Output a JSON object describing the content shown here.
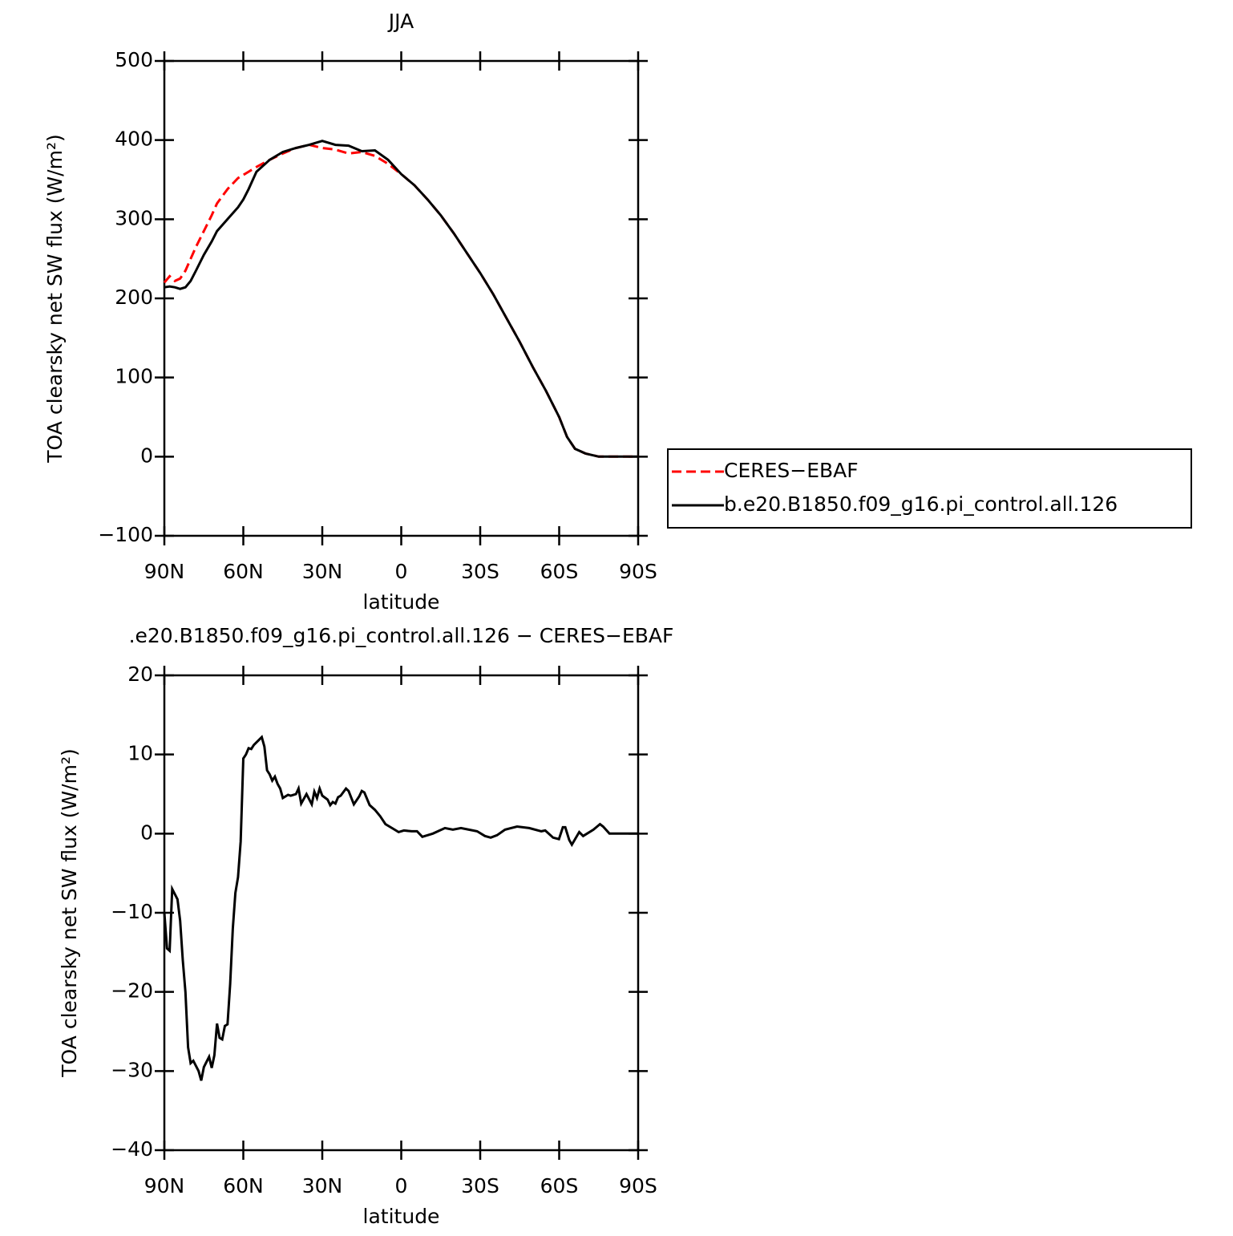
{
  "chart_data": [
    {
      "type": "line",
      "title": "JJA",
      "xlabel": "latitude",
      "ylabel": "TOA clearsky net SW flux (W/m²)",
      "x": [
        90,
        88,
        86,
        84,
        82,
        80,
        78,
        75,
        72,
        70,
        66,
        62,
        60,
        58,
        55,
        50,
        45,
        40,
        35,
        30,
        25,
        20,
        15,
        10,
        5,
        0,
        -5,
        -10,
        -15,
        -20,
        -25,
        -30,
        -35,
        -40,
        -45,
        -50,
        -55,
        -60,
        -63,
        -66,
        -70,
        -75,
        -80,
        -85,
        -90
      ],
      "series": [
        {
          "name": "CERES−EBAF",
          "color": "#ff0000",
          "dashed": true,
          "values": [
            220,
            228,
            222,
            225,
            235,
            250,
            265,
            285,
            305,
            320,
            338,
            352,
            356,
            360,
            366,
            375,
            383,
            390,
            394,
            390,
            388,
            383,
            385,
            380,
            370,
            357,
            343,
            325,
            305,
            282,
            257,
            232,
            205,
            175,
            145,
            113,
            83,
            50,
            25,
            10,
            4,
            0,
            0,
            0,
            0
          ]
        },
        {
          "name": "b.e20.B1850.f09_g16.pi_control.all.126",
          "color": "#000000",
          "dashed": false,
          "values": [
            214,
            215,
            214,
            212,
            214,
            222,
            235,
            255,
            272,
            285,
            300,
            315,
            325,
            338,
            360,
            375,
            385,
            390,
            394,
            399,
            394,
            393,
            386,
            387,
            375,
            357,
            343,
            325,
            305,
            282,
            257,
            232,
            205,
            175,
            145,
            113,
            83,
            50,
            25,
            10,
            4,
            0,
            0,
            0,
            0
          ]
        }
      ],
      "xlim": [
        90,
        -90
      ],
      "xticks": [
        {
          "value": 90,
          "label": "90N"
        },
        {
          "value": 60,
          "label": "60N"
        },
        {
          "value": 30,
          "label": "30N"
        },
        0,
        {
          "value": -30,
          "label": "30S"
        },
        {
          "value": -60,
          "label": "60S"
        },
        {
          "value": -90,
          "label": "90S"
        }
      ],
      "ylim": [
        -100,
        500
      ],
      "yticks": [
        {
          "value": -100,
          "label": "−100"
        },
        0,
        100,
        200,
        300,
        400,
        500
      ],
      "legend": "right"
    },
    {
      "type": "line",
      "title": ".e20.B1850.f09_g16.pi_control.all.126 − CERES−EBAF",
      "xlabel": "latitude",
      "ylabel": "TOA clearsky net SW flux (W/m²)",
      "x": [
        90,
        89,
        88,
        87,
        85,
        84,
        83,
        82,
        81,
        80,
        79,
        77,
        76,
        75,
        73,
        72,
        71,
        70,
        69,
        68,
        67,
        66,
        65,
        64,
        63,
        62,
        61,
        60,
        59,
        58,
        57,
        56,
        53,
        52,
        51,
        50,
        49,
        48,
        47,
        46,
        45,
        43,
        42,
        40,
        39,
        38,
        36,
        34,
        33,
        32,
        31,
        30,
        28,
        27,
        26,
        25,
        24,
        23,
        21,
        20,
        18,
        16,
        15,
        14,
        12,
        10,
        8,
        6,
        3,
        1,
        -1,
        -4,
        -6,
        -8,
        -12,
        -16.6,
        -19.6,
        -22.7,
        -25.7,
        -28.8,
        -31.8,
        -34,
        -36.4,
        -39.4,
        -44,
        -48.6,
        -53.2,
        -54.7,
        -57.7,
        -59.9,
        -61.4,
        -62.3,
        -63.8,
        -64.8,
        -67.6,
        -69.1,
        -73,
        -75.5,
        -76.7,
        -79.1,
        -90
      ],
      "series": [
        {
          "color": "#000000",
          "dashed": false,
          "values": [
            -10,
            -14.5,
            -14.8,
            -7,
            -8.3,
            -11,
            -16,
            -20,
            -27,
            -29,
            -28.7,
            -30,
            -31.2,
            -29.5,
            -28.2,
            -29.6,
            -28,
            -24,
            -25.8,
            -26,
            -24.3,
            -24.1,
            -19,
            -12,
            -7.5,
            -5.5,
            -1,
            9.5,
            10,
            10.8,
            10.7,
            11.2,
            12.2,
            11,
            8,
            7.5,
            6.7,
            7.2,
            6.3,
            5.7,
            4.5,
            4.9,
            4.8,
            5,
            5.7,
            3.8,
            5,
            3.7,
            5.3,
            4.5,
            5.7,
            4.8,
            4.3,
            3.6,
            4,
            3.8,
            4.6,
            4.8,
            5.7,
            5.4,
            3.7,
            4.7,
            5.4,
            5.2,
            3.6,
            3,
            2.2,
            1.2,
            0.6,
            0.2,
            0.4,
            0.3,
            0.3,
            -0.4,
            0,
            0.7,
            0.5,
            0.7,
            0.5,
            0.3,
            -0.3,
            -0.5,
            -0.2,
            0.5,
            0.9,
            0.7,
            0.3,
            0.4,
            -0.5,
            -0.7,
            0.8,
            0.8,
            -0.8,
            -1.4,
            0.2,
            -0.3,
            0.5,
            1.2,
            0.9,
            0,
            0
          ]
        }
      ],
      "xlim": [
        90,
        -90
      ],
      "xticks": [
        {
          "value": 90,
          "label": "90N"
        },
        {
          "value": 60,
          "label": "60N"
        },
        {
          "value": 30,
          "label": "30N"
        },
        0,
        {
          "value": -30,
          "label": "30S"
        },
        {
          "value": -60,
          "label": "60S"
        },
        {
          "value": -90,
          "label": "90S"
        }
      ],
      "ylim": [
        -40,
        20
      ],
      "yticks": [
        {
          "value": -40,
          "label": "−40"
        },
        {
          "value": -30,
          "label": "−30"
        },
        {
          "value": -20,
          "label": "−20"
        },
        {
          "value": -10,
          "label": "−10"
        },
        0,
        10,
        20
      ]
    }
  ]
}
